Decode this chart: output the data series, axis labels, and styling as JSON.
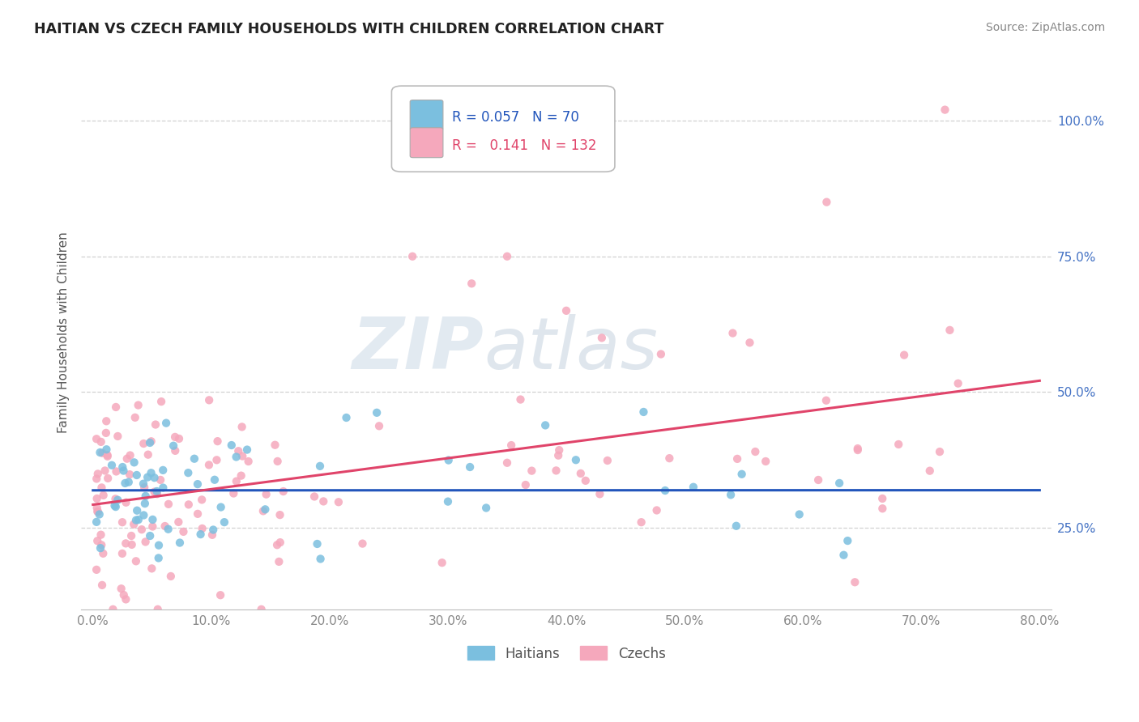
{
  "title": "HAITIAN VS CZECH FAMILY HOUSEHOLDS WITH CHILDREN CORRELATION CHART",
  "source": "Source: ZipAtlas.com",
  "xlim": [
    -1,
    81
  ],
  "ylim": [
    10,
    112
  ],
  "x_ticks": [
    0,
    10,
    20,
    30,
    40,
    50,
    60,
    70,
    80
  ],
  "y_ticks_right": [
    25,
    50,
    75,
    100
  ],
  "legend_entries": [
    {
      "label": "Haitians",
      "R": "0.057",
      "N": "70",
      "color": "#7bbfdf"
    },
    {
      "label": "Czechs",
      "R": "0.141",
      "N": "132",
      "color": "#f5a8bc"
    }
  ],
  "watermark": "ZIPatlas",
  "ylabel": "Family Households with Children",
  "haitian_color": "#7bbfdf",
  "czech_color": "#f5a8bc",
  "haitian_line_color": "#2255bb",
  "czech_line_color": "#e0446a",
  "background_color": "#ffffff",
  "grid_color": "#cccccc",
  "title_color": "#222222",
  "source_color": "#888888",
  "tick_color": "#888888",
  "right_tick_color": "#4472c4"
}
